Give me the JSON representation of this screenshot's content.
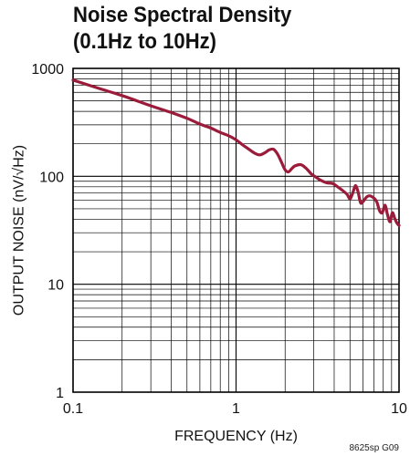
{
  "title_lines": [
    "Noise Spectral Density",
    "(0.1Hz to 10Hz)"
  ],
  "footnote": "8625sp G09",
  "colors": {
    "line": "#9b1b3a",
    "grid": "#000000",
    "text": "#111111"
  },
  "chart_data": {
    "type": "line",
    "title": "Noise Spectral Density (0.1Hz to 10Hz)",
    "xlabel": "FREQUENCY (Hz)",
    "ylabel": "OUTPUT NOISE (nV/√Hz)",
    "xscale": "log",
    "yscale": "log",
    "xlim": [
      0.1,
      10
    ],
    "ylim": [
      1,
      1000
    ],
    "grid": true,
    "x_tick_labels": [
      "0.1",
      "1",
      "10"
    ],
    "y_tick_labels": [
      "1",
      "10",
      "100",
      "1000"
    ],
    "series": [
      {
        "x": [
          0.1,
          0.15,
          0.2,
          0.3,
          0.4,
          0.5,
          0.6,
          0.7,
          0.8,
          0.9,
          1.0,
          1.1,
          1.2,
          1.3,
          1.4,
          1.5,
          1.6,
          1.7,
          1.8,
          1.9,
          2.0,
          2.1,
          2.2,
          2.3,
          2.5,
          2.7,
          2.9,
          3.1,
          3.3,
          3.6,
          3.9,
          4.2,
          4.5,
          4.8,
          5.0,
          5.2,
          5.4,
          5.6,
          5.8,
          6.0,
          6.3,
          6.6,
          7.0,
          7.3,
          7.6,
          7.9,
          8.2,
          8.5,
          8.8,
          9.1,
          9.4,
          9.7,
          10.0
        ],
        "values": [
          780,
          640,
          560,
          450,
          390,
          345,
          305,
          280,
          255,
          238,
          218,
          195,
          178,
          164,
          158,
          165,
          176,
          178,
          160,
          135,
          115,
          110,
          118,
          125,
          128,
          118,
          105,
          98,
          92,
          87,
          86,
          80,
          74,
          68,
          62,
          70,
          82,
          72,
          57,
          58,
          64,
          66,
          63,
          58,
          48,
          46,
          54,
          44,
          38,
          46,
          41,
          37,
          35
        ]
      }
    ]
  }
}
